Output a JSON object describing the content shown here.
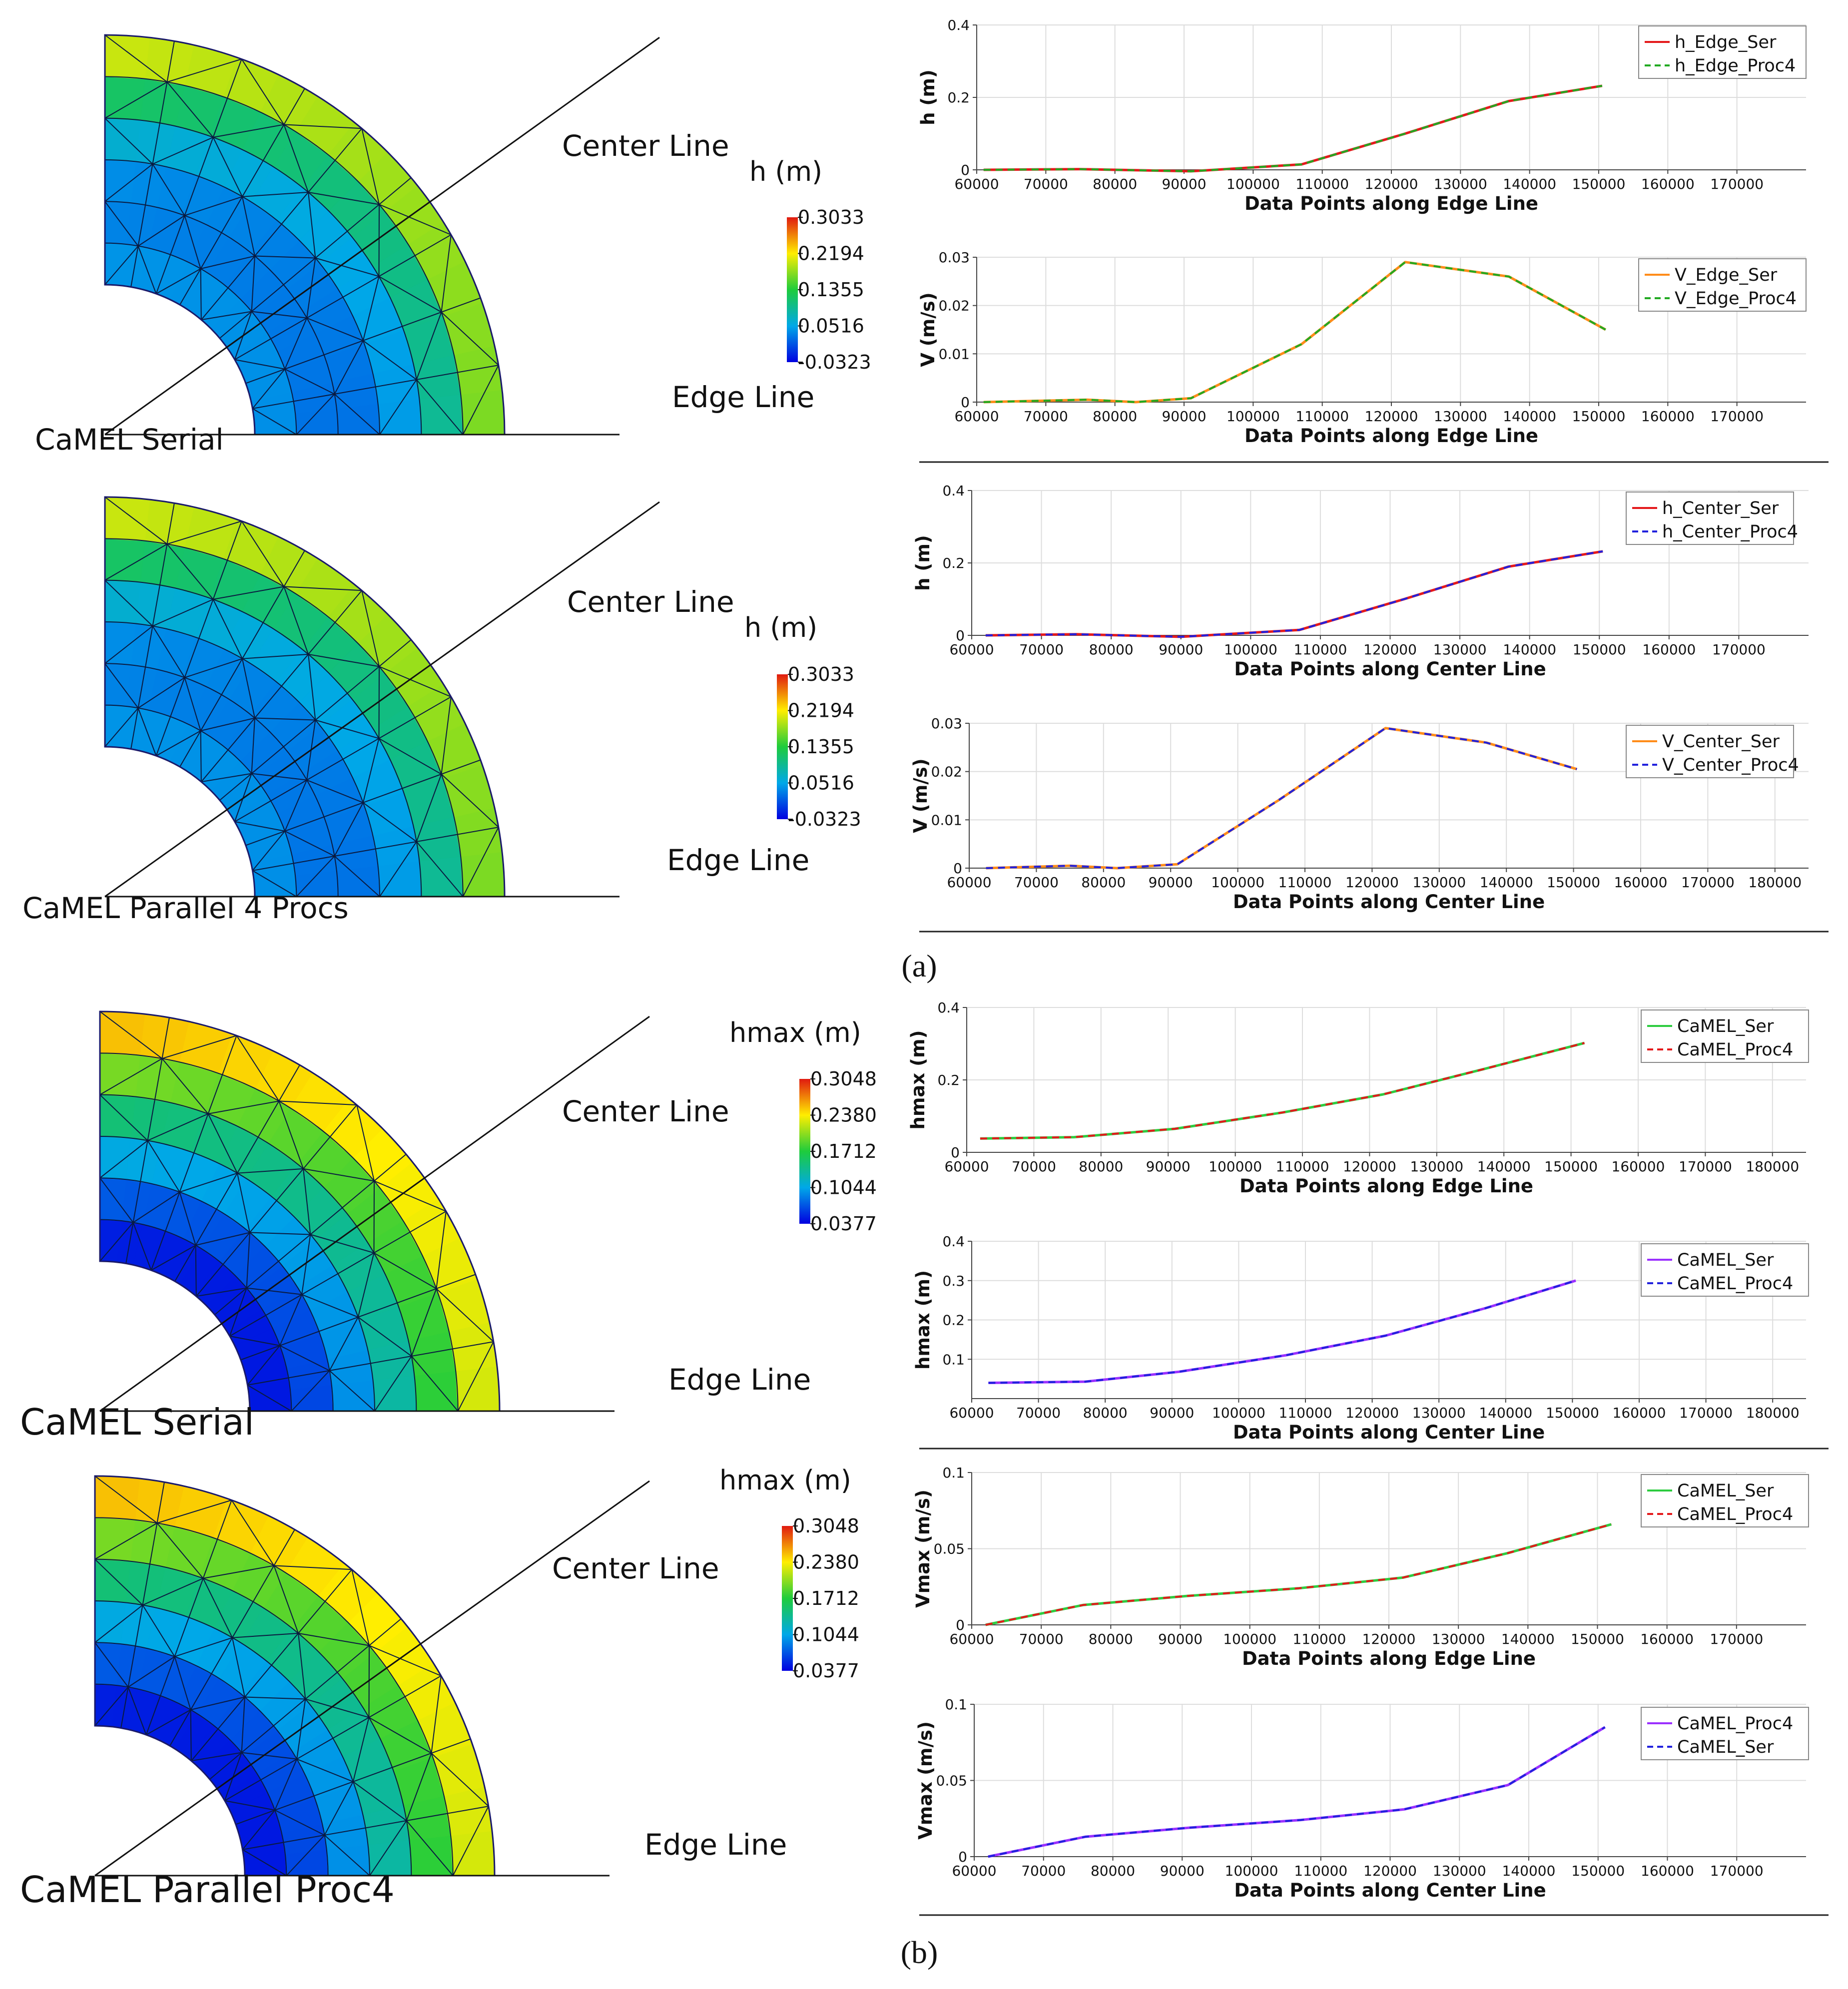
{
  "colors": {
    "red": "#e41a1c",
    "green": "#2ecc40",
    "green_dash": "#22aa22",
    "orange": "#ff8c1a",
    "blue": "#2222dd",
    "purple": "#9b30ff",
    "grid": "#dddddd"
  },
  "maps": [
    {
      "id": "map-a1",
      "caption": "CaMEL Serial",
      "center_label": "Center Line",
      "edge_label": "Edge Line",
      "colorbar_title": "h (m)",
      "colorbar_ticks": [
        "0.3033",
        "0.2194",
        "0.1355",
        "0.0516",
        "-0.0323"
      ],
      "palette": "h"
    },
    {
      "id": "map-a2",
      "caption": "CaMEL Parallel 4 Procs",
      "center_label": "Center Line",
      "edge_label": "Edge Line",
      "colorbar_title": "h (m)",
      "colorbar_ticks": [
        "0.3033",
        "0.2194",
        "0.1355",
        "0.0516",
        "-0.0323"
      ],
      "palette": "h"
    },
    {
      "id": "map-b1",
      "caption": "CaMEL Serial",
      "center_label": "Center Line",
      "edge_label": "Edge Line",
      "colorbar_title": "hmax  (m)",
      "colorbar_ticks": [
        "0.3048",
        "0.2380",
        "0.1712",
        "0.1044",
        "0.0377"
      ],
      "palette": "hmax"
    },
    {
      "id": "map-b2",
      "caption": "CaMEL Parallel Proc4",
      "center_label": "Center Line",
      "edge_label": "Edge Line",
      "colorbar_title": "hmax (m)",
      "colorbar_ticks": [
        "0.3048",
        "0.2380",
        "0.1712",
        "0.1044",
        "0.0377"
      ],
      "palette": "hmax"
    }
  ],
  "panel_labels": {
    "a": "(a)",
    "b": "(b)"
  },
  "chart_data": [
    {
      "type": "line",
      "id": "c1",
      "xlabel": "Data Points along Edge Line",
      "ylabel": "h (m)",
      "xlim": [
        60000,
        180000
      ],
      "xticks": [
        60000,
        70000,
        80000,
        90000,
        100000,
        110000,
        120000,
        130000,
        140000,
        150000,
        160000,
        170000
      ],
      "ylim": [
        0,
        0.4
      ],
      "yticks": [
        0,
        0.2,
        0.4
      ],
      "ytick_labels": [
        "0",
        "0.2",
        "0.4"
      ],
      "series": [
        {
          "name": "h_Edge_Ser",
          "color": "red",
          "dashed": false,
          "x": [
            61000,
            75000,
            91000,
            107000,
            122000,
            137000,
            150500
          ],
          "y": [
            0,
            0.002,
            -0.004,
            0.015,
            0.1,
            0.19,
            0.232
          ]
        },
        {
          "name": "h_Edge_Proc4",
          "color": "green_dash",
          "dashed": true,
          "x": [
            61000,
            75000,
            91000,
            107000,
            122000,
            137000,
            150500
          ],
          "y": [
            0,
            0.002,
            -0.004,
            0.015,
            0.1,
            0.19,
            0.232
          ]
        }
      ]
    },
    {
      "type": "line",
      "id": "c2",
      "xlabel": "Data Points along Edge Line",
      "ylabel": "V (m/s)",
      "xlim": [
        60000,
        180000
      ],
      "xticks": [
        60000,
        70000,
        80000,
        90000,
        100000,
        110000,
        120000,
        130000,
        140000,
        150000,
        160000,
        170000
      ],
      "ylim": [
        0,
        0.03
      ],
      "yticks": [
        0,
        0.01,
        0.02,
        0.03
      ],
      "ytick_labels": [
        "0",
        "0.01",
        "0.02",
        "0.03"
      ],
      "series": [
        {
          "name": "V_Edge_Ser",
          "color": "orange",
          "dashed": false,
          "x": [
            61000,
            76000,
            83000,
            91000,
            107000,
            122000,
            137000,
            151000
          ],
          "y": [
            0,
            0.0005,
            0,
            0.0008,
            0.012,
            0.029,
            0.026,
            0.015
          ]
        },
        {
          "name": "V_Edge_Proc4",
          "color": "green_dash",
          "dashed": true,
          "x": [
            61000,
            76000,
            83000,
            91000,
            107000,
            122000,
            137000,
            151000
          ],
          "y": [
            0,
            0.0005,
            0,
            0.0008,
            0.012,
            0.029,
            0.026,
            0.015
          ]
        }
      ]
    },
    {
      "type": "line",
      "id": "c3",
      "xlabel": "Data Points along Center Line",
      "ylabel": "h (m)",
      "xlim": [
        60000,
        180000
      ],
      "xticks": [
        60000,
        70000,
        80000,
        90000,
        100000,
        110000,
        120000,
        130000,
        140000,
        150000,
        160000,
        170000
      ],
      "ylim": [
        0,
        0.4
      ],
      "yticks": [
        0,
        0.2,
        0.4
      ],
      "ytick_labels": [
        "0",
        "0.2",
        "0.4"
      ],
      "series": [
        {
          "name": "h_Center_Ser",
          "color": "red",
          "dashed": false,
          "x": [
            62000,
            75000,
            90000,
            107000,
            122000,
            137000,
            150500
          ],
          "y": [
            0,
            0.003,
            -0.004,
            0.015,
            0.1,
            0.19,
            0.232
          ]
        },
        {
          "name": "h_Center_Proc4",
          "color": "blue",
          "dashed": true,
          "x": [
            62000,
            75000,
            90000,
            107000,
            122000,
            137000,
            150500
          ],
          "y": [
            0,
            0.003,
            -0.004,
            0.015,
            0.1,
            0.19,
            0.232
          ]
        }
      ]
    },
    {
      "type": "line",
      "id": "c4",
      "xlabel": "Data Points along Center Line",
      "ylabel": "V (m/s)",
      "xlim": [
        60000,
        185000
      ],
      "xticks": [
        60000,
        70000,
        80000,
        90000,
        100000,
        110000,
        120000,
        130000,
        140000,
        150000,
        160000,
        170000,
        180000
      ],
      "ylim": [
        0,
        0.03
      ],
      "yticks": [
        0,
        0.01,
        0.02,
        0.03
      ],
      "ytick_labels": [
        "0",
        "0.01",
        "0.02",
        "0.03"
      ],
      "series": [
        {
          "name": "V_Center_Ser",
          "color": "orange",
          "dashed": false,
          "x": [
            62500,
            75000,
            82000,
            91000,
            106000,
            122000,
            137000,
            150500
          ],
          "y": [
            0,
            0.0005,
            0,
            0.0008,
            0.014,
            0.029,
            0.026,
            0.0205
          ]
        },
        {
          "name": "V_Center_Proc4",
          "color": "blue",
          "dashed": true,
          "x": [
            62500,
            75000,
            82000,
            91000,
            106000,
            122000,
            137000,
            150500
          ],
          "y": [
            0,
            0.0005,
            0,
            0.0008,
            0.014,
            0.029,
            0.026,
            0.0205
          ]
        }
      ]
    },
    {
      "type": "line",
      "id": "c5",
      "xlabel": "Data Points along Edge Line",
      "ylabel": "hmax (m)",
      "xlim": [
        60000,
        185000
      ],
      "xticks": [
        60000,
        70000,
        80000,
        90000,
        100000,
        110000,
        120000,
        130000,
        140000,
        150000,
        160000,
        170000,
        180000
      ],
      "ylim": [
        0,
        0.4
      ],
      "yticks": [
        0,
        0.2,
        0.4
      ],
      "ytick_labels": [
        "0",
        "0.2",
        "0.4"
      ],
      "series": [
        {
          "name": "CaMEL_Ser",
          "color": "green",
          "dashed": false,
          "x": [
            62000,
            76000,
            91000,
            107000,
            122000,
            137000,
            152000
          ],
          "y": [
            0.038,
            0.042,
            0.065,
            0.11,
            0.16,
            0.23,
            0.302
          ]
        },
        {
          "name": "CaMEL_Proc4",
          "color": "red",
          "dashed": true,
          "x": [
            62000,
            76000,
            91000,
            107000,
            122000,
            137000,
            152000
          ],
          "y": [
            0.038,
            0.042,
            0.065,
            0.11,
            0.16,
            0.23,
            0.302
          ]
        }
      ]
    },
    {
      "type": "line",
      "id": "c6",
      "xlabel": "Data Points along Center Line",
      "ylabel": "hmax (m)",
      "xlim": [
        60000,
        185000
      ],
      "xticks": [
        60000,
        70000,
        80000,
        90000,
        100000,
        110000,
        120000,
        130000,
        140000,
        150000,
        160000,
        170000,
        180000
      ],
      "ylim": [
        0,
        0.4
      ],
      "yticks": [
        0.1,
        0.2,
        0.3,
        0.4
      ],
      "ytick_labels": [
        "0.1",
        "0.2",
        "0.3",
        "0.4"
      ],
      "series": [
        {
          "name": "CaMEL_Ser",
          "color": "purple",
          "dashed": false,
          "x": [
            62500,
            77000,
            91000,
            107000,
            122000,
            137000,
            150500
          ],
          "y": [
            0.04,
            0.043,
            0.068,
            0.11,
            0.16,
            0.23,
            0.3
          ]
        },
        {
          "name": "CaMEL_Proc4",
          "color": "blue",
          "dashed": true,
          "x": [
            62500,
            77000,
            91000,
            107000,
            122000,
            137000,
            150500
          ],
          "y": [
            0.04,
            0.043,
            0.068,
            0.11,
            0.16,
            0.23,
            0.3
          ]
        }
      ]
    },
    {
      "type": "line",
      "id": "c7",
      "xlabel": "Data Points along Edge Line",
      "ylabel": "Vmax (m/s)",
      "xlim": [
        60000,
        180000
      ],
      "xticks": [
        60000,
        70000,
        80000,
        90000,
        100000,
        110000,
        120000,
        130000,
        140000,
        150000,
        160000,
        170000
      ],
      "ylim": [
        0,
        0.1
      ],
      "yticks": [
        0,
        0.05,
        0.1
      ],
      "ytick_labels": [
        "0",
        "0.05",
        "0.1"
      ],
      "series": [
        {
          "name": "CaMEL_Ser",
          "color": "green",
          "dashed": false,
          "x": [
            62000,
            76000,
            91000,
            107000,
            122000,
            137000,
            152000
          ],
          "y": [
            0,
            0.013,
            0.019,
            0.024,
            0.031,
            0.047,
            0.066
          ]
        },
        {
          "name": "CaMEL_Proc4",
          "color": "red",
          "dashed": true,
          "x": [
            62000,
            76000,
            91000,
            107000,
            122000,
            137000,
            152000
          ],
          "y": [
            0,
            0.013,
            0.019,
            0.024,
            0.031,
            0.047,
            0.066
          ]
        }
      ]
    },
    {
      "type": "line",
      "id": "c8",
      "xlabel": "Data Points along Center Line",
      "ylabel": "Vmax (m/s)",
      "xlim": [
        60000,
        180000
      ],
      "xticks": [
        60000,
        70000,
        80000,
        90000,
        100000,
        110000,
        120000,
        130000,
        140000,
        150000,
        160000,
        170000
      ],
      "ylim": [
        0,
        0.1
      ],
      "yticks": [
        0,
        0.05,
        0.1
      ],
      "ytick_labels": [
        "0",
        "0.05",
        "0.1"
      ],
      "series": [
        {
          "name": "CaMEL_Proc4",
          "color": "purple",
          "dashed": false,
          "x": [
            62000,
            76000,
            91000,
            107000,
            122000,
            137000,
            151000
          ],
          "y": [
            0,
            0.013,
            0.019,
            0.024,
            0.031,
            0.047,
            0.085
          ]
        },
        {
          "name": "CaMEL_Ser",
          "color": "blue",
          "dashed": true,
          "x": [
            62000,
            76000,
            91000,
            107000,
            122000,
            137000,
            151000
          ],
          "y": [
            0,
            0.013,
            0.019,
            0.024,
            0.031,
            0.047,
            0.085
          ]
        }
      ]
    }
  ]
}
